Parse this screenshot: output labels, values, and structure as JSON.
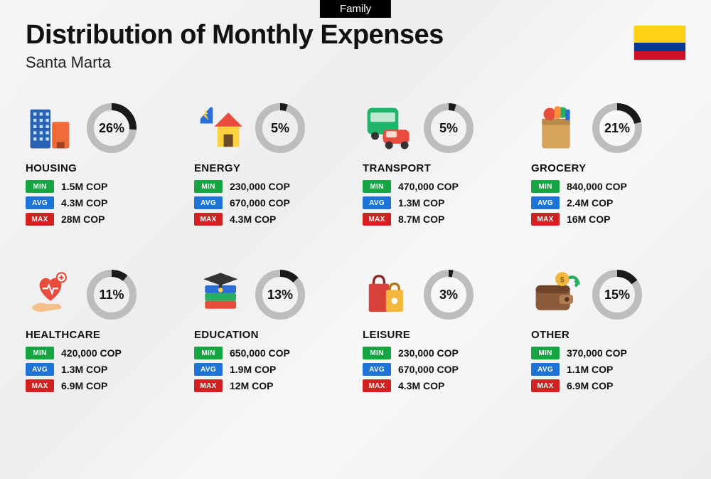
{
  "tab": "Family",
  "title": "Distribution of Monthly Expenses",
  "subtitle": "Santa Marta",
  "flag_colors": {
    "top": "#FCD116",
    "mid": "#003893",
    "bot": "#CE1126"
  },
  "donut_style": {
    "radius": 30,
    "stroke_width": 10,
    "track_color": "#bdbdbd",
    "arc_color": "#1a1a1a",
    "pct_fontsize": 18,
    "pct_fontweight": 800
  },
  "badge_colors": {
    "min": "#17a443",
    "avg": "#1e73d6",
    "max": "#d32020"
  },
  "badge_labels": {
    "min": "MIN",
    "avg": "AVG",
    "max": "MAX"
  },
  "currency": "COP",
  "categories": [
    {
      "key": "housing",
      "label": "HOUSING",
      "pct": 26,
      "min": "1.5M COP",
      "avg": "4.3M COP",
      "max": "28M COP",
      "icon": "buildings"
    },
    {
      "key": "energy",
      "label": "ENERGY",
      "pct": 5,
      "min": "230,000 COP",
      "avg": "670,000 COP",
      "max": "4.3M COP",
      "icon": "house-bolt"
    },
    {
      "key": "transport",
      "label": "TRANSPORT",
      "pct": 5,
      "min": "470,000 COP",
      "avg": "1.3M COP",
      "max": "8.7M COP",
      "icon": "bus-car"
    },
    {
      "key": "grocery",
      "label": "GROCERY",
      "pct": 21,
      "min": "840,000 COP",
      "avg": "2.4M COP",
      "max": "16M COP",
      "icon": "grocery-bag"
    },
    {
      "key": "healthcare",
      "label": "HEALTHCARE",
      "pct": 11,
      "min": "420,000 COP",
      "avg": "1.3M COP",
      "max": "6.9M COP",
      "icon": "heart-hand"
    },
    {
      "key": "education",
      "label": "EDUCATION",
      "pct": 13,
      "min": "650,000 COP",
      "avg": "1.9M COP",
      "max": "12M COP",
      "icon": "grad-books"
    },
    {
      "key": "leisure",
      "label": "LEISURE",
      "pct": 3,
      "min": "230,000 COP",
      "avg": "670,000 COP",
      "max": "4.3M COP",
      "icon": "shopping-bags"
    },
    {
      "key": "other",
      "label": "OTHER",
      "pct": 15,
      "min": "370,000 COP",
      "avg": "1.1M COP",
      "max": "6.9M COP",
      "icon": "wallet-arrow"
    }
  ]
}
